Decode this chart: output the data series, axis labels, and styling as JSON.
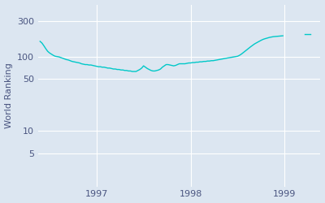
{
  "ylabel": "World Ranking",
  "line_color": "#00c8c8",
  "bg_color": "#dce6f1",
  "line_width": 1.0,
  "x_ticks": [
    1997,
    1998,
    1999
  ],
  "y_ticks": [
    5,
    10,
    50,
    100,
    300
  ],
  "y_tick_labels": [
    "5",
    "10",
    "50",
    "100",
    "300"
  ],
  "xlim": [
    1996.38,
    1999.38
  ],
  "ylim_log": [
    1.8,
    500
  ],
  "isolated_x": 1999.22,
  "isolated_y": 200,
  "data_points": [
    [
      1996.4,
      160
    ],
    [
      1996.42,
      152
    ],
    [
      1996.44,
      140
    ],
    [
      1996.46,
      128
    ],
    [
      1996.48,
      118
    ],
    [
      1996.5,
      112
    ],
    [
      1996.52,
      108
    ],
    [
      1996.54,
      104
    ],
    [
      1996.56,
      101
    ],
    [
      1996.58,
      100
    ],
    [
      1996.6,
      99
    ],
    [
      1996.62,
      97
    ],
    [
      1996.64,
      95
    ],
    [
      1996.66,
      93
    ],
    [
      1996.68,
      91
    ],
    [
      1996.7,
      90
    ],
    [
      1996.72,
      88
    ],
    [
      1996.74,
      86
    ],
    [
      1996.76,
      85
    ],
    [
      1996.78,
      84
    ],
    [
      1996.8,
      83
    ],
    [
      1996.82,
      82
    ],
    [
      1996.84,
      80
    ],
    [
      1996.86,
      79
    ],
    [
      1996.88,
      78
    ],
    [
      1996.9,
      78
    ],
    [
      1996.92,
      77
    ],
    [
      1996.94,
      77
    ],
    [
      1996.96,
      76
    ],
    [
      1996.98,
      75
    ],
    [
      1997.0,
      74
    ],
    [
      1997.02,
      73
    ],
    [
      1997.04,
      73
    ],
    [
      1997.06,
      72
    ],
    [
      1997.08,
      72
    ],
    [
      1997.1,
      71
    ],
    [
      1997.12,
      70
    ],
    [
      1997.14,
      70
    ],
    [
      1997.16,
      69
    ],
    [
      1997.18,
      68
    ],
    [
      1997.2,
      68
    ],
    [
      1997.22,
      67
    ],
    [
      1997.24,
      67
    ],
    [
      1997.26,
      66
    ],
    [
      1997.28,
      66
    ],
    [
      1997.3,
      65
    ],
    [
      1997.32,
      65
    ],
    [
      1997.34,
      64
    ],
    [
      1997.36,
      64
    ],
    [
      1997.38,
      63
    ],
    [
      1997.4,
      63
    ],
    [
      1997.42,
      63
    ],
    [
      1997.44,
      65
    ],
    [
      1997.46,
      67
    ],
    [
      1997.48,
      70
    ],
    [
      1997.5,
      75
    ],
    [
      1997.52,
      72
    ],
    [
      1997.54,
      69
    ],
    [
      1997.56,
      67
    ],
    [
      1997.58,
      65
    ],
    [
      1997.6,
      64
    ],
    [
      1997.62,
      64
    ],
    [
      1997.64,
      65
    ],
    [
      1997.66,
      66
    ],
    [
      1997.68,
      68
    ],
    [
      1997.7,
      72
    ],
    [
      1997.72,
      75
    ],
    [
      1997.74,
      78
    ],
    [
      1997.76,
      78
    ],
    [
      1997.78,
      77
    ],
    [
      1997.8,
      76
    ],
    [
      1997.82,
      75
    ],
    [
      1997.84,
      76
    ],
    [
      1997.86,
      78
    ],
    [
      1997.88,
      80
    ],
    [
      1997.9,
      80
    ],
    [
      1997.92,
      80
    ],
    [
      1997.94,
      80
    ],
    [
      1997.96,
      81
    ],
    [
      1997.98,
      82
    ],
    [
      1998.0,
      82
    ],
    [
      1998.02,
      83
    ],
    [
      1998.04,
      83
    ],
    [
      1998.06,
      84
    ],
    [
      1998.08,
      84
    ],
    [
      1998.1,
      85
    ],
    [
      1998.12,
      85
    ],
    [
      1998.14,
      86
    ],
    [
      1998.16,
      86
    ],
    [
      1998.18,
      87
    ],
    [
      1998.2,
      87
    ],
    [
      1998.22,
      88
    ],
    [
      1998.24,
      88
    ],
    [
      1998.26,
      89
    ],
    [
      1998.28,
      90
    ],
    [
      1998.3,
      91
    ],
    [
      1998.32,
      92
    ],
    [
      1998.34,
      93
    ],
    [
      1998.36,
      94
    ],
    [
      1998.38,
      95
    ],
    [
      1998.4,
      96
    ],
    [
      1998.42,
      97
    ],
    [
      1998.44,
      98
    ],
    [
      1998.46,
      99
    ],
    [
      1998.48,
      100
    ],
    [
      1998.5,
      101
    ],
    [
      1998.52,
      104
    ],
    [
      1998.54,
      108
    ],
    [
      1998.56,
      113
    ],
    [
      1998.58,
      118
    ],
    [
      1998.6,
      124
    ],
    [
      1998.62,
      130
    ],
    [
      1998.64,
      136
    ],
    [
      1998.66,
      142
    ],
    [
      1998.68,
      148
    ],
    [
      1998.7,
      153
    ],
    [
      1998.72,
      158
    ],
    [
      1998.74,
      163
    ],
    [
      1998.76,
      168
    ],
    [
      1998.78,
      172
    ],
    [
      1998.8,
      175
    ],
    [
      1998.82,
      178
    ],
    [
      1998.84,
      181
    ],
    [
      1998.86,
      183
    ],
    [
      1998.88,
      185
    ],
    [
      1998.9,
      186
    ],
    [
      1998.92,
      187
    ],
    [
      1998.94,
      188
    ],
    [
      1998.96,
      189
    ],
    [
      1998.98,
      190
    ]
  ]
}
